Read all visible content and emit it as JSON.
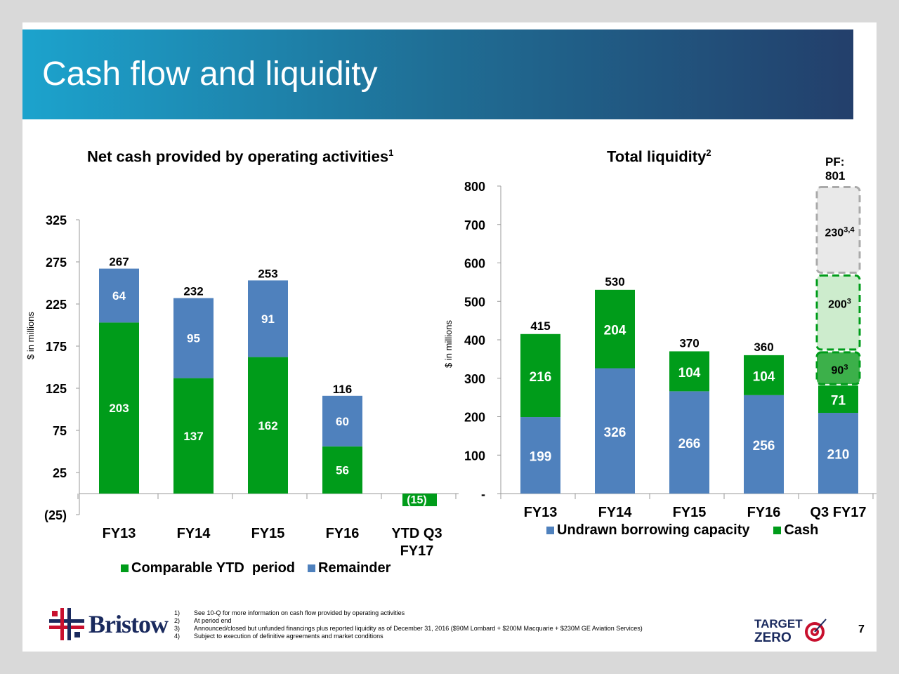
{
  "title": "Cash flow and liquidity",
  "colors": {
    "green": "#009c1a",
    "blue": "#4f81bd",
    "lightgreen": "#cdeccd",
    "midgreen": "#3cb04a",
    "grey": "#e9e9e9"
  },
  "chart_data": [
    {
      "type": "bar",
      "stacked": true,
      "title": "Net cash provided by operating activities",
      "title_sup": "1",
      "ylabel": "$ in millions",
      "ylim": [
        -25,
        325
      ],
      "yticks": [
        "(25)",
        "25",
        "75",
        "125",
        "175",
        "225",
        "275",
        "325"
      ],
      "categories": [
        "FY13",
        "FY14",
        "FY15",
        "FY16",
        "YTD Q3 FY17"
      ],
      "category_lines": [
        [
          "FY13"
        ],
        [
          "FY14"
        ],
        [
          "FY15"
        ],
        [
          "FY16"
        ],
        [
          "YTD Q3",
          "FY17"
        ]
      ],
      "series": [
        {
          "name": "Comparable YTD  period",
          "values": [
            203,
            137,
            162,
            56,
            -15
          ],
          "labels": [
            "203",
            "137",
            "162",
            "56",
            "(15)"
          ]
        },
        {
          "name": "Remainder",
          "values": [
            64,
            95,
            91,
            60,
            null
          ],
          "labels": [
            "64",
            "95",
            "91",
            "60",
            ""
          ]
        }
      ],
      "totals": [
        "267",
        "232",
        "253",
        "116",
        ""
      ],
      "legend": "bottom"
    },
    {
      "type": "bar",
      "stacked": true,
      "title": "Total liquidity",
      "title_sup": "2",
      "ylabel": "$ in millions",
      "ylim": [
        0,
        800
      ],
      "yticks": [
        "-",
        "100",
        "200",
        "300",
        "400",
        "500",
        "600",
        "700",
        "800"
      ],
      "categories": [
        "FY13",
        "FY14",
        "FY15",
        "FY16",
        "Q3 FY17"
      ],
      "series": [
        {
          "name": "Undrawn borrowing capacity",
          "values": [
            199,
            326,
            266,
            256,
            210
          ],
          "labels": [
            "199",
            "326",
            "266",
            "256",
            "210"
          ]
        },
        {
          "name": "Cash",
          "values": [
            216,
            204,
            104,
            104,
            71
          ],
          "labels": [
            "216",
            "204",
            "104",
            "104",
            "71"
          ]
        }
      ],
      "totals": [
        "415",
        "530",
        "370",
        "360",
        ""
      ],
      "pro_forma": {
        "label_line1": "PF:",
        "label_line2": "801",
        "segments": [
          {
            "value": 90,
            "label": "90",
            "sup": "3"
          },
          {
            "value": 200,
            "label": "200",
            "sup": "3"
          },
          {
            "value": 230,
            "label": "230",
            "sup": "3,4"
          }
        ]
      },
      "legend": "bottom"
    }
  ],
  "footnotes": [
    {
      "num": "1)",
      "text": "See 10-Q for more information on cash flow provided by operating activities"
    },
    {
      "num": "2)",
      "text": "At period end"
    },
    {
      "num": "3)",
      "text": "Announced/closed but unfunded financings plus reported liquidity as of  December 31, 2016 ($90M Lombard + $200M Macquarie + $230M GE Aviation Services)"
    },
    {
      "num": "4)",
      "text": "Subject to execution of definitive agreements and market conditions"
    }
  ],
  "page_number": "7",
  "logos": {
    "left": "Bristow",
    "right_line1": "TARGET",
    "right_line2": "ZERO"
  }
}
